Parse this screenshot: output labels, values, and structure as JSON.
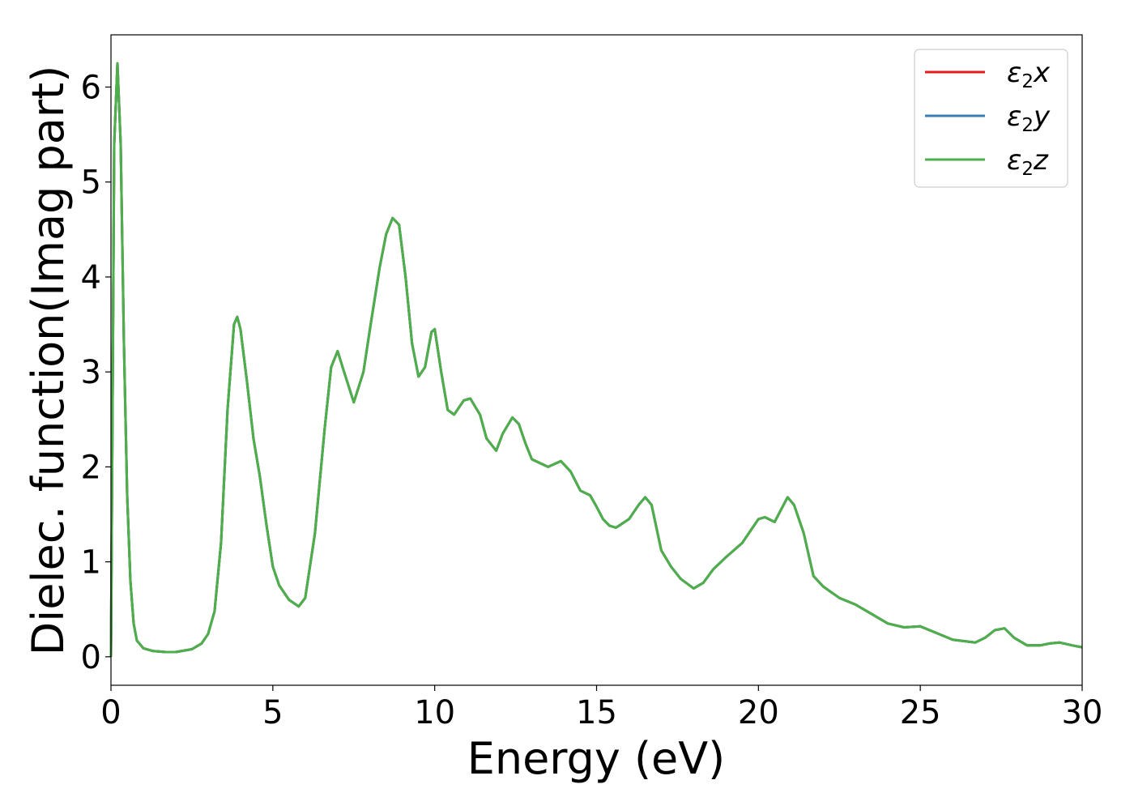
{
  "chart_data": {
    "type": "line",
    "xlabel": "Energy (eV)",
    "ylabel": "Dielec. function(Imag part)",
    "xlim": [
      0,
      30
    ],
    "ylim": [
      -0.3,
      6.55
    ],
    "xticks": [
      0,
      5,
      10,
      15,
      20,
      25,
      30
    ],
    "yticks": [
      0,
      1,
      2,
      3,
      4,
      5,
      6
    ],
    "grid": false,
    "legend_position": "top-right",
    "x": [
      0.0,
      0.1,
      0.2,
      0.3,
      0.4,
      0.5,
      0.6,
      0.7,
      0.8,
      1.0,
      1.3,
      1.7,
      2.0,
      2.5,
      2.8,
      3.0,
      3.2,
      3.4,
      3.6,
      3.8,
      3.9,
      4.0,
      4.2,
      4.4,
      4.6,
      4.8,
      5.0,
      5.2,
      5.5,
      5.8,
      6.0,
      6.3,
      6.6,
      6.8,
      7.0,
      7.2,
      7.5,
      7.8,
      8.0,
      8.3,
      8.5,
      8.7,
      8.9,
      9.1,
      9.3,
      9.5,
      9.7,
      9.9,
      10.0,
      10.2,
      10.4,
      10.6,
      10.9,
      11.1,
      11.4,
      11.6,
      11.9,
      12.1,
      12.4,
      12.6,
      12.8,
      13.0,
      13.5,
      13.9,
      14.2,
      14.5,
      14.8,
      15.0,
      15.2,
      15.4,
      15.6,
      16.0,
      16.3,
      16.5,
      16.7,
      17.0,
      17.3,
      17.6,
      18.0,
      18.3,
      18.6,
      19.0,
      19.5,
      20.0,
      20.2,
      20.5,
      20.9,
      21.1,
      21.4,
      21.7,
      22.0,
      22.5,
      23.0,
      23.5,
      24.0,
      24.5,
      25.0,
      25.5,
      26.0,
      26.7,
      27.0,
      27.3,
      27.6,
      27.9,
      28.3,
      28.7,
      29.0,
      29.3,
      29.7,
      30.0
    ],
    "values": [
      0.0,
      5.4,
      6.25,
      5.4,
      3.3,
      1.7,
      0.8,
      0.35,
      0.17,
      0.09,
      0.06,
      0.05,
      0.05,
      0.08,
      0.14,
      0.24,
      0.48,
      1.2,
      2.6,
      3.5,
      3.58,
      3.45,
      2.9,
      2.3,
      1.9,
      1.4,
      0.95,
      0.75,
      0.6,
      0.53,
      0.62,
      1.3,
      2.4,
      3.05,
      3.22,
      3.0,
      2.68,
      3.0,
      3.45,
      4.1,
      4.45,
      4.62,
      4.55,
      4.0,
      3.3,
      2.95,
      3.05,
      3.42,
      3.45,
      3.0,
      2.6,
      2.55,
      2.7,
      2.72,
      2.55,
      2.3,
      2.17,
      2.35,
      2.52,
      2.45,
      2.25,
      2.08,
      2.0,
      2.06,
      1.95,
      1.75,
      1.7,
      1.58,
      1.45,
      1.38,
      1.36,
      1.45,
      1.6,
      1.68,
      1.6,
      1.12,
      0.95,
      0.82,
      0.72,
      0.78,
      0.92,
      1.05,
      1.2,
      1.45,
      1.47,
      1.42,
      1.68,
      1.6,
      1.3,
      0.85,
      0.74,
      0.62,
      0.55,
      0.45,
      0.35,
      0.31,
      0.32,
      0.25,
      0.18,
      0.15,
      0.2,
      0.28,
      0.3,
      0.2,
      0.12,
      0.12,
      0.14,
      0.15,
      0.12,
      0.1
    ],
    "series": [
      {
        "name": "ε2x",
        "name_base": "ε",
        "name_sub": "2",
        "name_tail": "x",
        "color": "#e41a1c"
      },
      {
        "name": "ε2y",
        "name_base": "ε",
        "name_sub": "2",
        "name_tail": "y",
        "color": "#377eb8"
      },
      {
        "name": "ε2z",
        "name_base": "ε",
        "name_sub": "2",
        "name_tail": "z",
        "color": "#4daf4a"
      }
    ]
  }
}
